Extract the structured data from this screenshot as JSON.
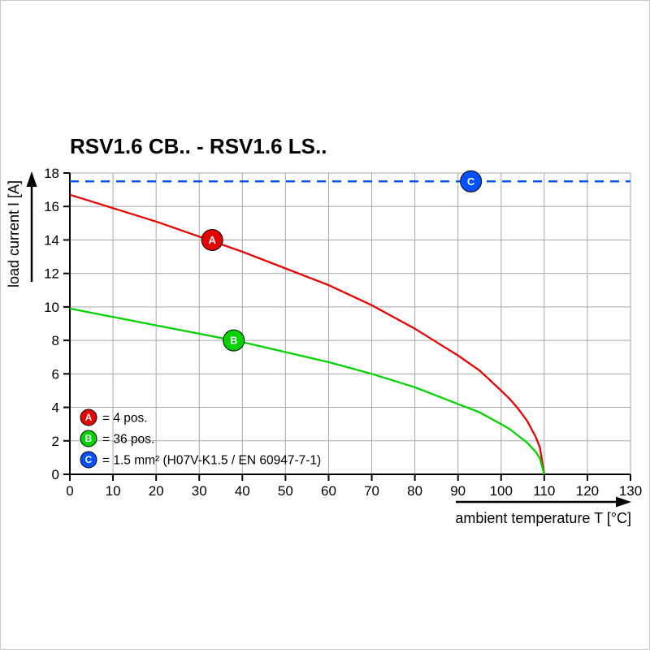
{
  "title": "RSV1.6 CB.. - RSV1.6 LS..",
  "colors": {
    "red": "#e60000",
    "green": "#00d300",
    "blue": "#0050ff",
    "grid": "#a8a8a8",
    "axis": "#000000"
  },
  "chart_data": {
    "type": "line",
    "title": "RSV1.6 CB.. - RSV1.6 LS..",
    "xlabel": "ambient temperature T [°C]",
    "ylabel": "load current I [A]",
    "xlim": [
      0,
      130
    ],
    "ylim": [
      0,
      18
    ],
    "x_ticks": [
      0,
      10,
      20,
      30,
      40,
      50,
      60,
      70,
      80,
      90,
      100,
      110,
      120,
      130
    ],
    "y_ticks": [
      0,
      2,
      4,
      6,
      8,
      10,
      12,
      14,
      16,
      18
    ],
    "grid": true,
    "legend_position": "lower-left-inside",
    "series": [
      {
        "name": "A",
        "label": "= 4 pos.",
        "color": "#e60000",
        "style": "solid",
        "marker_at": {
          "x": 33,
          "y": 14
        },
        "points": [
          [
            0,
            16.7
          ],
          [
            10,
            15.9
          ],
          [
            20,
            15.1
          ],
          [
            30,
            14.2
          ],
          [
            40,
            13.3
          ],
          [
            50,
            12.3
          ],
          [
            60,
            11.3
          ],
          [
            70,
            10.1
          ],
          [
            80,
            8.7
          ],
          [
            90,
            7.1
          ],
          [
            95,
            6.2
          ],
          [
            100,
            5.0
          ],
          [
            102,
            4.5
          ],
          [
            104,
            3.9
          ],
          [
            106,
            3.2
          ],
          [
            108,
            2.25
          ],
          [
            109,
            1.6
          ],
          [
            110,
            0
          ]
        ]
      },
      {
        "name": "B",
        "label": "= 36 pos.",
        "color": "#00d300",
        "style": "solid",
        "marker_at": {
          "x": 38,
          "y": 8
        },
        "points": [
          [
            0,
            9.9
          ],
          [
            10,
            9.4
          ],
          [
            20,
            8.9
          ],
          [
            30,
            8.4
          ],
          [
            40,
            7.9
          ],
          [
            50,
            7.3
          ],
          [
            60,
            6.7
          ],
          [
            70,
            6.0
          ],
          [
            80,
            5.2
          ],
          [
            90,
            4.2
          ],
          [
            95,
            3.7
          ],
          [
            100,
            3.0
          ],
          [
            102,
            2.7
          ],
          [
            104,
            2.3
          ],
          [
            106,
            1.9
          ],
          [
            108,
            1.35
          ],
          [
            109,
            0.95
          ],
          [
            110,
            0
          ]
        ]
      },
      {
        "name": "C",
        "label": "= 1.5 mm² (H07V-K1.5 / EN 60947-7-1)",
        "color": "#0050ff",
        "style": "dashed",
        "marker_at": {
          "x": 93,
          "y": 17.5
        },
        "points": [
          [
            0,
            17.5
          ],
          [
            130,
            17.5
          ]
        ]
      }
    ]
  }
}
